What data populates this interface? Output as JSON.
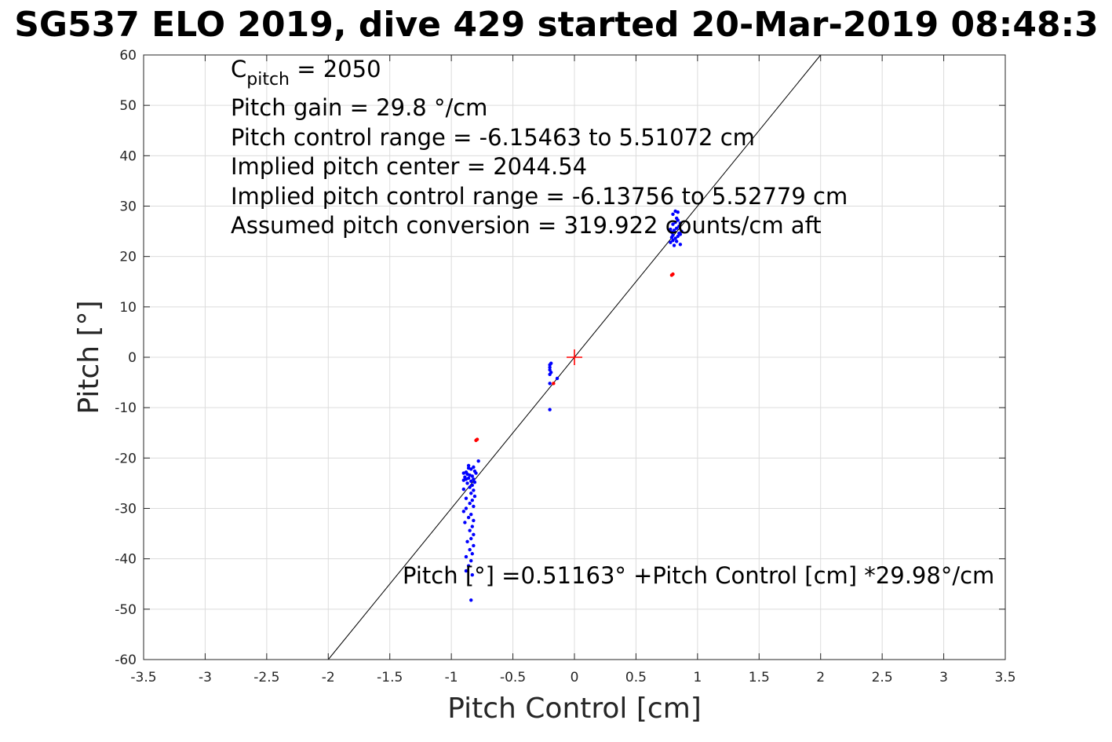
{
  "chart_data": {
    "type": "scatter",
    "title": "SG537 ELO 2019, dive 429 started 20-Mar-2019 08:48:3",
    "xlabel": "Pitch Control [cm]",
    "ylabel": "Pitch [°]",
    "xlim": [
      -3.5,
      3.5
    ],
    "ylim": [
      -60,
      60
    ],
    "xticks": [
      -3.5,
      -3,
      -2.5,
      -2,
      -1.5,
      -1,
      -0.5,
      0,
      0.5,
      1,
      1.5,
      2,
      2.5,
      3,
      3.5
    ],
    "xtick_labels": [
      "-3.5",
      "-3",
      "-2.5",
      "-2",
      "-1.5",
      "-1",
      "-0.5",
      "0",
      "0.5",
      "1",
      "1.5",
      "2",
      "2.5",
      "3",
      "3.5"
    ],
    "yticks": [
      -60,
      -50,
      -40,
      -30,
      -20,
      -10,
      0,
      10,
      20,
      30,
      40,
      50,
      60
    ],
    "ytick_labels": [
      "-60",
      "-50",
      "-40",
      "-30",
      "-20",
      "-10",
      "0",
      "10",
      "20",
      "30",
      "40",
      "50",
      "60"
    ],
    "grid": true,
    "colors": {
      "blue": "#0000ff",
      "red": "#ff0000",
      "fit_line": "#000000",
      "grid": "#dcdcdc"
    },
    "series": [
      {
        "color": "blue",
        "points": [
          [
            -0.86,
            -21.5
          ],
          [
            -0.82,
            -21.8
          ],
          [
            -0.84,
            -22.2
          ],
          [
            -0.81,
            -22.6
          ],
          [
            -0.88,
            -22.8
          ],
          [
            -0.9,
            -23.0
          ],
          [
            -0.87,
            -23.2
          ],
          [
            -0.85,
            -23.4
          ],
          [
            -0.83,
            -23.6
          ],
          [
            -0.89,
            -23.8
          ],
          [
            -0.86,
            -24.0
          ],
          [
            -0.82,
            -24.2
          ],
          [
            -0.9,
            -24.4
          ],
          [
            -0.84,
            -24.6
          ],
          [
            -0.81,
            -24.8
          ],
          [
            -0.87,
            -25.0
          ],
          [
            -0.83,
            -25.4
          ],
          [
            -0.85,
            -25.8
          ],
          [
            -0.82,
            -26.4
          ],
          [
            -0.84,
            -27.0
          ],
          [
            -0.81,
            -27.6
          ],
          [
            -0.83,
            -28.4
          ],
          [
            -0.85,
            -29.0
          ],
          [
            -0.82,
            -29.6
          ],
          [
            -0.88,
            -30.0
          ],
          [
            -0.9,
            -30.6
          ],
          [
            -0.84,
            -31.2
          ],
          [
            -0.86,
            -31.8
          ],
          [
            -0.82,
            -32.4
          ],
          [
            -0.89,
            -32.8
          ],
          [
            -0.83,
            -33.6
          ],
          [
            -0.85,
            -34.4
          ],
          [
            -0.82,
            -35.2
          ],
          [
            -0.84,
            -36.0
          ],
          [
            -0.87,
            -36.6
          ],
          [
            -0.82,
            -37.4
          ],
          [
            -0.85,
            -38.2
          ],
          [
            -0.83,
            -39.0
          ],
          [
            -0.88,
            -39.6
          ],
          [
            -0.84,
            -40.4
          ],
          [
            -0.86,
            -41.4
          ],
          [
            -0.88,
            -42.4
          ],
          [
            -0.83,
            -43.2
          ],
          [
            -0.84,
            -48.2
          ],
          [
            -0.78,
            -20.6
          ],
          [
            -0.86,
            -22.0
          ],
          [
            -0.8,
            -23.0
          ],
          [
            -0.88,
            -24.2
          ],
          [
            -0.9,
            -26.2
          ],
          [
            -0.88,
            -28.0
          ],
          [
            -0.2,
            -1.5
          ],
          [
            -0.2,
            -2.0
          ],
          [
            -0.2,
            -2.5
          ],
          [
            -0.19,
            -3.0
          ],
          [
            -0.2,
            -3.4
          ],
          [
            -0.19,
            -1.2
          ],
          [
            -0.2,
            -10.4
          ],
          [
            -0.2,
            -5.2
          ],
          [
            -0.14,
            -4.2
          ],
          [
            0.78,
            22.8
          ],
          [
            0.8,
            23.2
          ],
          [
            0.82,
            23.6
          ],
          [
            0.84,
            24.0
          ],
          [
            0.86,
            24.4
          ],
          [
            0.79,
            24.8
          ],
          [
            0.81,
            25.2
          ],
          [
            0.83,
            25.6
          ],
          [
            0.85,
            26.0
          ],
          [
            0.8,
            26.4
          ],
          [
            0.82,
            26.8
          ],
          [
            0.84,
            27.2
          ],
          [
            0.86,
            22.4
          ],
          [
            0.78,
            25.4
          ],
          [
            0.8,
            28.4
          ],
          [
            0.82,
            29.0
          ],
          [
            0.84,
            28.8
          ],
          [
            0.81,
            22.2
          ],
          [
            0.83,
            23.0
          ],
          [
            0.85,
            24.6
          ],
          [
            0.87,
            25.0
          ],
          [
            0.79,
            23.8
          ],
          [
            0.86,
            26.6
          ],
          [
            0.8,
            24.2
          ],
          [
            0.83,
            27.6
          ]
        ]
      },
      {
        "color": "red",
        "points": [
          [
            0.79,
            16.3
          ],
          [
            0.8,
            16.5
          ],
          [
            -0.79,
            -16.3
          ],
          [
            -0.8,
            -16.5
          ],
          [
            -0.17,
            -5.2
          ]
        ]
      }
    ],
    "center_marker": {
      "x": 0,
      "y": 0,
      "color": "red"
    },
    "fit_line": {
      "x": [
        -2.0,
        2.0
      ],
      "y": [
        -60,
        60
      ]
    },
    "annotations": [
      {
        "base": "C",
        "subscript": "pitch",
        "rest": " = 2050"
      },
      {
        "text": "Pitch gain = 29.8 °/cm"
      },
      {
        "text": "Pitch control range = -6.15463 to 5.51072 cm"
      },
      {
        "text": "Implied pitch center = 2044.54"
      },
      {
        "text": "Implied pitch control range = -6.13756 to 5.52779 cm"
      },
      {
        "text": "Assumed pitch conversion = 319.922 counts/cm aft"
      }
    ],
    "fit_equation": "Pitch [°] =0.51163° +Pitch Control [cm] *29.98°/cm"
  }
}
